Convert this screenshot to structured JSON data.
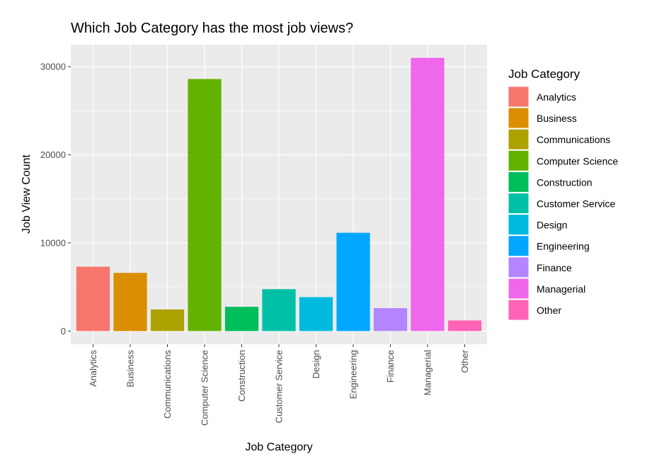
{
  "chart_data": {
    "type": "bar",
    "title": "Which Job Category has the most job views?",
    "xlabel": "Job Category",
    "ylabel": "Job View Count",
    "categories": [
      "Analytics",
      "Business",
      "Communications",
      "Computer Science",
      "Construction",
      "Customer Service",
      "Design",
      "Engineering",
      "Finance",
      "Managerial",
      "Other"
    ],
    "values": [
      7300,
      6600,
      2450,
      28600,
      2750,
      4750,
      3850,
      11150,
      2600,
      31000,
      1200
    ],
    "colors": [
      "#F8766D",
      "#DB8E00",
      "#AEA200",
      "#64B200",
      "#00BD5C",
      "#00C1A7",
      "#00BADE",
      "#00A6FF",
      "#B385FF",
      "#EF67EB",
      "#FF63B6"
    ],
    "ylim": [
      -1500,
      32500
    ],
    "yticks": [
      0,
      10000,
      20000,
      30000
    ],
    "ytick_labels": [
      "0",
      "10000",
      "20000",
      "30000"
    ],
    "grid": true,
    "legend": {
      "title": "Job Category",
      "position": "right",
      "entries": [
        "Analytics",
        "Business",
        "Communications",
        "Computer Science",
        "Construction",
        "Customer Service",
        "Design",
        "Engineering",
        "Finance",
        "Managerial",
        "Other"
      ]
    },
    "panel_background": "#EBEBEB",
    "grid_color": "#FFFFFF"
  }
}
